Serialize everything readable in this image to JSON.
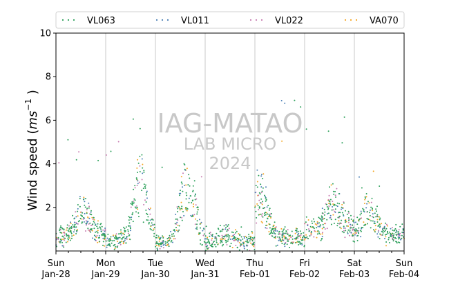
{
  "chart_data": {
    "type": "scatter",
    "ylabel": "Wind speed ($ms^{-1}$)",
    "ylabel_parts": {
      "pre": "Wind speed (",
      "m": "ms",
      "sup": "−1",
      "post": " )"
    },
    "ylim": [
      0,
      10
    ],
    "yticks": [
      2,
      4,
      6,
      8,
      10
    ],
    "xlim_days": [
      0,
      7
    ],
    "xticks": [
      {
        "day": "Sun",
        "date": "Jan-28"
      },
      {
        "day": "Mon",
        "date": "Jan-29"
      },
      {
        "day": "Tue",
        "date": "Jan-30"
      },
      {
        "day": "Wed",
        "date": "Jan-31"
      },
      {
        "day": "Thu",
        "date": "Feb-01"
      },
      {
        "day": "Fri",
        "date": "Feb-02"
      },
      {
        "day": "Sat",
        "date": "Feb-03"
      },
      {
        "day": "Sun",
        "date": "Feb-04"
      }
    ],
    "grid": "vertical at day boundaries",
    "legend_position": "top",
    "series": [
      {
        "name": "VL063",
        "color": "#2ca05a"
      },
      {
        "name": "VL011",
        "color": "#4a7fb5"
      },
      {
        "name": "VL022",
        "color": "#c77ab0"
      },
      {
        "name": "VA070",
        "color": "#f5a623"
      }
    ],
    "daily_profile": [
      {
        "day": "Jan-28",
        "night": 0.7,
        "peak": 1.8,
        "peak_time": 0.55,
        "max": 5.4
      },
      {
        "day": "Jan-29",
        "night": 0.5,
        "peak": 3.0,
        "peak_time": 0.7,
        "max": 6.2
      },
      {
        "day": "Jan-30",
        "night": 0.4,
        "peak": 3.1,
        "peak_time": 0.65,
        "max": 4.0
      },
      {
        "day": "Jan-31",
        "night": 0.4,
        "peak": 0.8,
        "peak_time": 0.4,
        "max": 1.2
      },
      {
        "day": "Feb-01",
        "night": 0.6,
        "peak": 2.6,
        "peak_time": 0.1,
        "max": 7.0
      },
      {
        "day": "Feb-02",
        "night": 1.0,
        "peak": 2.2,
        "peak_time": 0.6,
        "max": 6.5
      },
      {
        "day": "Feb-03",
        "night": 0.7,
        "peak": 1.8,
        "peak_time": 0.3,
        "max": 4.1
      }
    ],
    "watermark": [
      "IAG-MATAO",
      "LAB MICRO",
      "2024"
    ]
  }
}
